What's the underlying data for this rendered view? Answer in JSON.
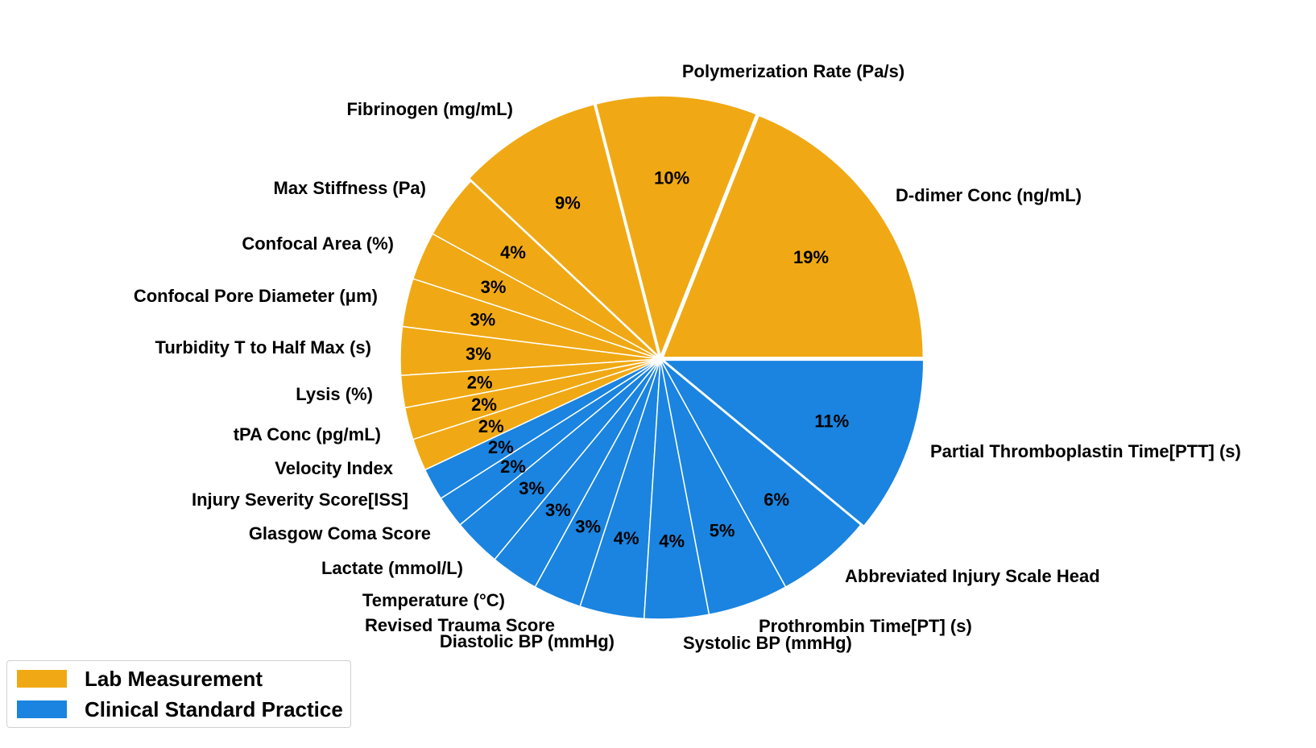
{
  "chart_data": {
    "type": "pie",
    "legend": {
      "placement": "bottom-left",
      "entries": [
        {
          "name": "Lab Measurement",
          "color": "#F0A914"
        },
        {
          "name": "Clinical Standard Practice",
          "color": "#1A84E0"
        }
      ]
    },
    "slices": [
      {
        "label": "D-dimer Conc (ng/mL)",
        "value": 19,
        "pct": "19%",
        "group": "Lab Measurement",
        "color": "#F0A914"
      },
      {
        "label": "Polymerization Rate (Pa/s)",
        "value": 10,
        "pct": "10%",
        "group": "Lab Measurement",
        "color": "#F0A914"
      },
      {
        "label": "Fibrinogen (mg/mL)",
        "value": 9,
        "pct": "9%",
        "group": "Lab Measurement",
        "color": "#F0A914"
      },
      {
        "label": "Max Stiffness (Pa)",
        "value": 4,
        "pct": "4%",
        "group": "Lab Measurement",
        "color": "#F0A914"
      },
      {
        "label": "Confocal Area (%)",
        "value": 3,
        "pct": "3%",
        "group": "Lab Measurement",
        "color": "#F0A914"
      },
      {
        "label": "Confocal Pore Diameter (μm)",
        "value": 3,
        "pct": "3%",
        "group": "Lab Measurement",
        "color": "#F0A914"
      },
      {
        "label": "Turbidity T to Half Max (s)",
        "value": 3,
        "pct": "3%",
        "group": "Lab Measurement",
        "color": "#F0A914"
      },
      {
        "label": "Lysis (%)",
        "value": 2,
        "pct": "2%",
        "group": "Lab Measurement",
        "color": "#F0A914"
      },
      {
        "label": "tPA Conc (pg/mL)",
        "value": 2,
        "pct": "2%",
        "group": "Lab Measurement",
        "color": "#F0A914"
      },
      {
        "label": "Velocity Index",
        "value": 2,
        "pct": "2%",
        "group": "Lab Measurement",
        "color": "#F0A914"
      },
      {
        "label": "Injury Severity Score[ISS]",
        "value": 2,
        "pct": "2%",
        "group": "Clinical Standard Practice",
        "color": "#1A84E0"
      },
      {
        "label": "Glasgow Coma Score",
        "value": 2,
        "pct": "2%",
        "group": "Clinical Standard Practice",
        "color": "#1A84E0"
      },
      {
        "label": "Lactate (mmol/L)",
        "value": 3,
        "pct": "3%",
        "group": "Clinical Standard Practice",
        "color": "#1A84E0"
      },
      {
        "label": "Temperature (°C)",
        "value": 3,
        "pct": "3%",
        "group": "Clinical Standard Practice",
        "color": "#1A84E0"
      },
      {
        "label": "Revised Trauma Score",
        "value": 3,
        "pct": "3%",
        "group": "Clinical Standard Practice",
        "color": "#1A84E0"
      },
      {
        "label": "Diastolic BP (mmHg)",
        "value": 4,
        "pct": "4%",
        "group": "Clinical Standard Practice",
        "color": "#1A84E0"
      },
      {
        "label": "Systolic BP (mmHg)",
        "value": 4,
        "pct": "4%",
        "group": "Clinical Standard Practice",
        "color": "#1A84E0"
      },
      {
        "label": "Prothrombin Time[PT] (s)",
        "value": 5,
        "pct": "5%",
        "group": "Clinical Standard Practice",
        "color": "#1A84E0"
      },
      {
        "label": "Abbreviated Injury Scale Head",
        "value": 6,
        "pct": "6%",
        "group": "Clinical Standard Practice",
        "color": "#1A84E0"
      },
      {
        "label": "Partial Thromboplastin Time[PTT] (s)",
        "value": 11,
        "pct": "11%",
        "group": "Clinical Standard Practice",
        "color": "#1A84E0"
      }
    ]
  }
}
